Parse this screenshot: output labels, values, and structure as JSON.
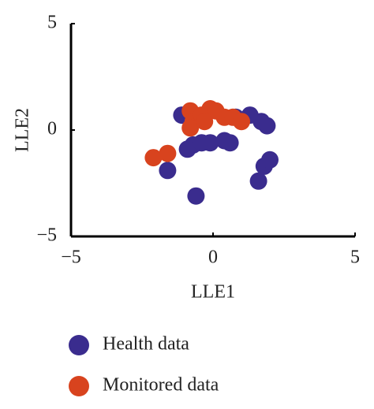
{
  "chart_data": {
    "type": "scatter",
    "x_label": "LLE1",
    "y_label": "LLE2",
    "xlim": [
      -5,
      5
    ],
    "ylim": [
      -5,
      5
    ],
    "xticks": [
      {
        "value": -5,
        "label": "−5"
      },
      0,
      5
    ],
    "yticks": [
      {
        "value": -5,
        "label": "−5"
      },
      0,
      5
    ],
    "series": [
      {
        "name": "Health data",
        "color": "#3a2c8e",
        "x": [
          -1.1,
          -0.7,
          -0.9,
          -0.4,
          0.4,
          0.6,
          0.8,
          1.3,
          1.7,
          1.9,
          -1.6,
          -0.6,
          1.6,
          1.8,
          2.0,
          -0.1
        ],
        "y": [
          0.7,
          -0.7,
          -0.9,
          -0.6,
          -0.5,
          -0.6,
          0.6,
          0.7,
          0.4,
          0.2,
          -1.9,
          -3.1,
          -2.4,
          -1.7,
          -1.4,
          -0.6
        ]
      },
      {
        "name": "Monitored data",
        "color": "#d8431e",
        "x": [
          -2.1,
          -1.6,
          -0.8,
          -0.7,
          -0.4,
          -0.1,
          0.1,
          0.4,
          0.7,
          1.0,
          -0.8,
          -0.3
        ],
        "y": [
          -1.3,
          -1.1,
          0.9,
          0.4,
          0.7,
          1.0,
          0.9,
          0.6,
          0.6,
          0.4,
          0.1,
          0.4
        ]
      }
    ]
  }
}
